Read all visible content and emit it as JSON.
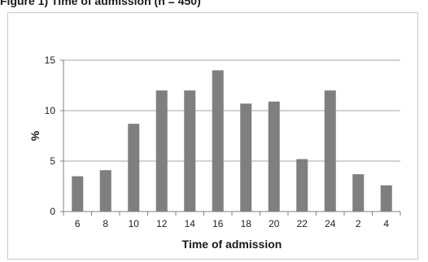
{
  "figure": {
    "title": "Figure 1)  Time of admission (n = 450)"
  },
  "chart_data": {
    "type": "bar",
    "categories": [
      "6",
      "8",
      "10",
      "12",
      "14",
      "16",
      "18",
      "20",
      "22",
      "24",
      "2",
      "4"
    ],
    "values": [
      3.5,
      4.1,
      8.7,
      12.0,
      12.0,
      14.0,
      10.7,
      10.9,
      5.2,
      12.0,
      3.7,
      2.6
    ],
    "xlabel": "Time of admission",
    "ylabel": "%",
    "ylim": [
      0,
      15
    ],
    "yticks": [
      0,
      5,
      10,
      15
    ],
    "grid": true,
    "bar_color": "#7f7f7f",
    "grid_color": "#a6a6a6"
  }
}
